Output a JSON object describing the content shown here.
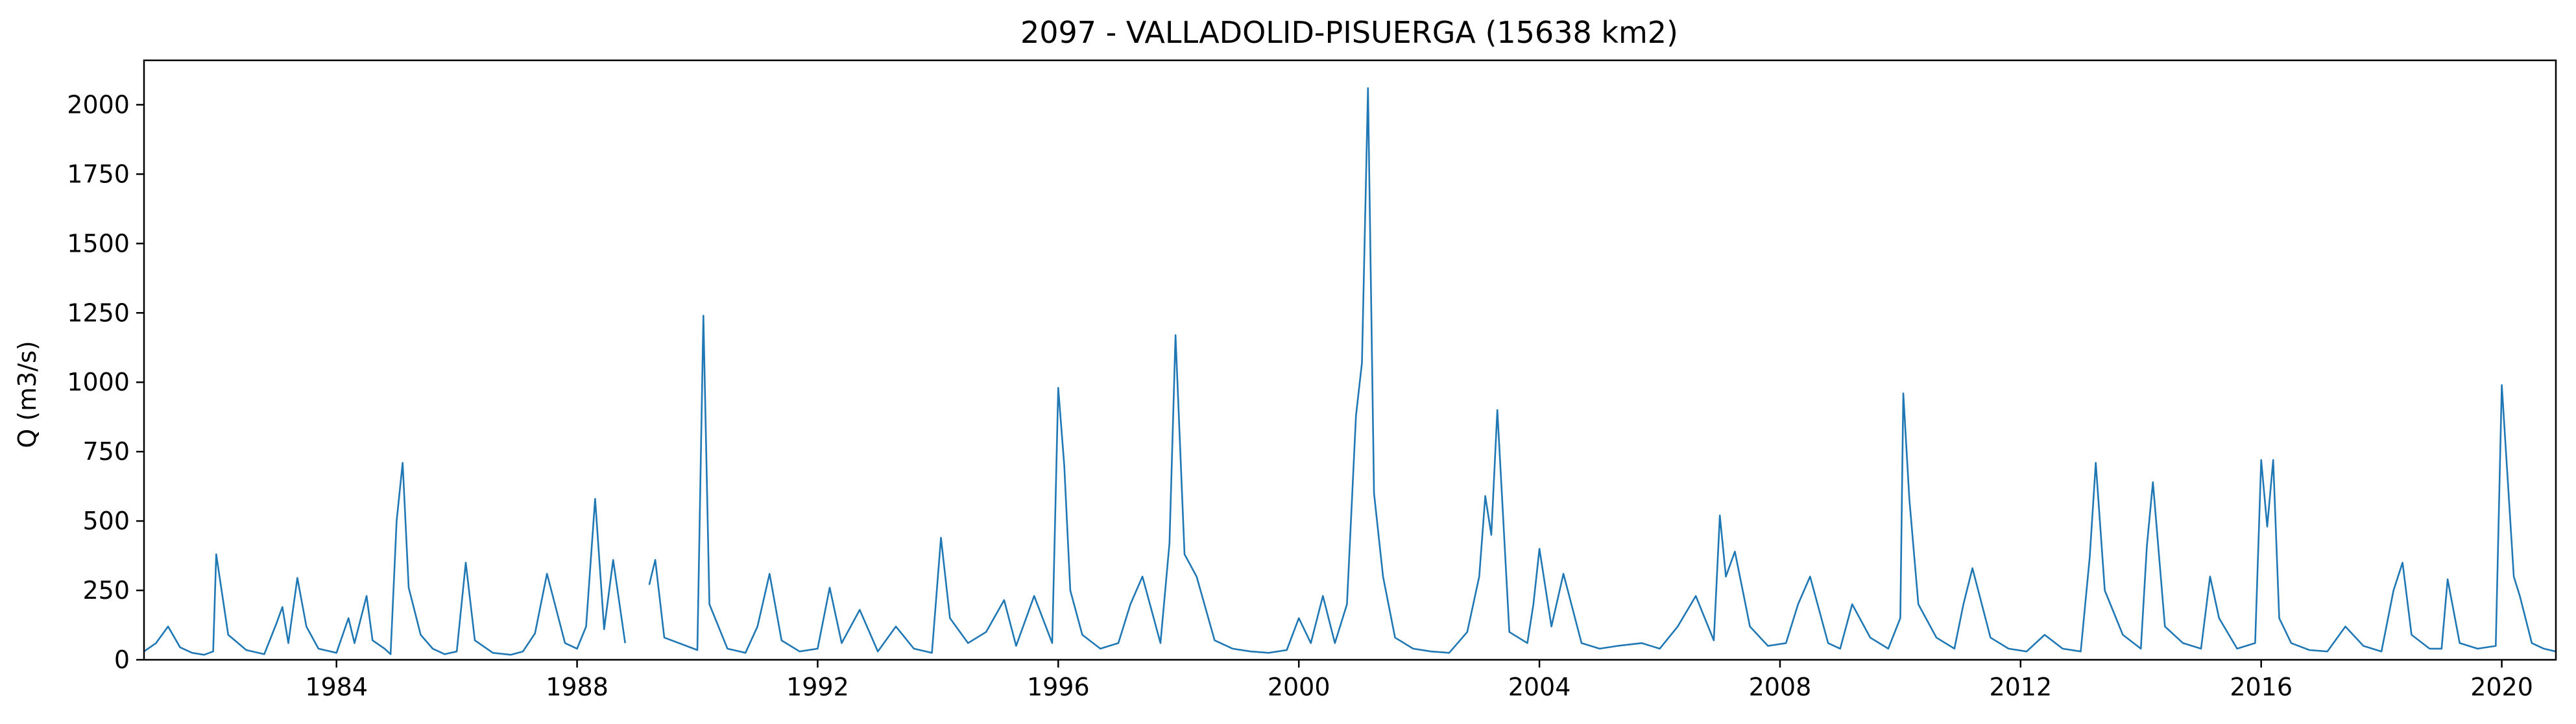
{
  "chart_data": {
    "type": "line",
    "title": "2097 - VALLADOLID-PISUERGA (15638 km2)",
    "xlabel": "",
    "ylabel": "Q (m3/s)",
    "xlim": [
      1980.8,
      2020.9
    ],
    "ylim": [
      0,
      2160
    ],
    "xticks": [
      1984,
      1988,
      1992,
      1996,
      2000,
      2004,
      2008,
      2012,
      2016,
      2020
    ],
    "yticks": [
      0,
      250,
      500,
      750,
      1000,
      1250,
      1500,
      1750,
      2000
    ],
    "grid": false,
    "series": [
      {
        "color": "#1f77b4",
        "x": [
          1980.8,
          1981.0,
          1981.2,
          1981.4,
          1981.6,
          1981.8,
          1981.95,
          1982.0,
          1982.2,
          1982.5,
          1982.8,
          1983.0,
          1983.1,
          1983.2,
          1983.35,
          1983.5,
          1983.7,
          1984.0,
          1984.2,
          1984.3,
          1984.5,
          1984.6,
          1984.8,
          1984.9,
          1985.0,
          1985.1,
          1985.2,
          1985.4,
          1985.6,
          1985.8,
          1986.0,
          1986.15,
          1986.3,
          1986.6,
          1986.9,
          1987.1,
          1987.3,
          1987.5,
          1987.8,
          1988.0,
          1988.15,
          1988.3,
          1988.45,
          1988.6,
          1988.8,
          1989.2,
          1989.3,
          1989.45,
          1989.6,
          1989.8,
          1990.0,
          1990.1,
          1990.2,
          1990.5,
          1990.8,
          1991.0,
          1991.2,
          1991.4,
          1991.7,
          1992.0,
          1992.2,
          1992.4,
          1992.7,
          1993.0,
          1993.3,
          1993.6,
          1993.9,
          1994.05,
          1994.2,
          1994.5,
          1994.8,
          1995.1,
          1995.3,
          1995.6,
          1995.9,
          1996.0,
          1996.1,
          1996.2,
          1996.4,
          1996.7,
          1997.0,
          1997.2,
          1997.4,
          1997.7,
          1997.85,
          1997.95,
          1998.1,
          1998.3,
          1998.6,
          1998.9,
          1999.2,
          1999.5,
          1999.8,
          2000.0,
          2000.2,
          2000.4,
          2000.6,
          2000.8,
          2000.95,
          2001.05,
          2001.15,
          2001.25,
          2001.4,
          2001.6,
          2001.9,
          2002.2,
          2002.5,
          2002.8,
          2003.0,
          2003.1,
          2003.2,
          2003.3,
          2003.5,
          2003.8,
          2003.9,
          2004.0,
          2004.2,
          2004.4,
          2004.7,
          2005.0,
          2005.3,
          2005.7,
          2006.0,
          2006.3,
          2006.6,
          2006.9,
          2007.0,
          2007.1,
          2007.25,
          2007.5,
          2007.8,
          2008.1,
          2008.3,
          2008.5,
          2008.8,
          2009.0,
          2009.2,
          2009.5,
          2009.8,
          2010.0,
          2010.05,
          2010.15,
          2010.3,
          2010.6,
          2010.9,
          2011.05,
          2011.2,
          2011.5,
          2011.8,
          2012.1,
          2012.4,
          2012.7,
          2013.0,
          2013.15,
          2013.25,
          2013.4,
          2013.7,
          2014.0,
          2014.1,
          2014.2,
          2014.4,
          2014.7,
          2015.0,
          2015.15,
          2015.3,
          2015.6,
          2015.9,
          2016.0,
          2016.1,
          2016.2,
          2016.3,
          2016.5,
          2016.8,
          2017.1,
          2017.4,
          2017.7,
          2018.0,
          2018.2,
          2018.35,
          2018.5,
          2018.8,
          2019.0,
          2019.1,
          2019.3,
          2019.6,
          2019.9,
          2020.0,
          2020.2,
          2020.3,
          2020.5,
          2020.7,
          2020.9
        ],
        "y": [
          30,
          60,
          120,
          45,
          25,
          18,
          30,
          380,
          90,
          35,
          20,
          130,
          190,
          60,
          295,
          120,
          40,
          25,
          150,
          60,
          230,
          70,
          40,
          20,
          500,
          710,
          260,
          90,
          40,
          20,
          30,
          350,
          70,
          25,
          18,
          30,
          95,
          310,
          60,
          40,
          120,
          580,
          110,
          360,
          60,
          270,
          360,
          80,
          40,
          25,
          35,
          1240,
          200,
          40,
          25,
          120,
          310,
          70,
          30,
          40,
          260,
          60,
          180,
          30,
          120,
          40,
          25,
          440,
          150,
          60,
          100,
          215,
          50,
          230,
          60,
          980,
          700,
          250,
          90,
          40,
          60,
          200,
          300,
          60,
          420,
          1170,
          380,
          300,
          70,
          40,
          30,
          25,
          35,
          150,
          60,
          230,
          60,
          200,
          880,
          1070,
          2060,
          600,
          300,
          80,
          40,
          30,
          25,
          100,
          300,
          590,
          450,
          900,
          100,
          60,
          200,
          400,
          120,
          310,
          60,
          40,
          50,
          60,
          40,
          120,
          230,
          70,
          520,
          300,
          390,
          120,
          50,
          60,
          200,
          300,
          60,
          40,
          200,
          80,
          40,
          150,
          960,
          580,
          200,
          80,
          40,
          200,
          330,
          80,
          40,
          30,
          90,
          40,
          30,
          370,
          710,
          250,
          90,
          40,
          410,
          640,
          120,
          60,
          40,
          300,
          150,
          40,
          60,
          720,
          480,
          720,
          150,
          60,
          35,
          30,
          120,
          50,
          30,
          250,
          350,
          90,
          40,
          40,
          290,
          60,
          40,
          50,
          990,
          300,
          230,
          60,
          40,
          30
        ]
      }
    ],
    "gaps": [
      [
        1988.85,
        1989.15
      ],
      [
        1989.5,
        1989.95
      ]
    ]
  }
}
